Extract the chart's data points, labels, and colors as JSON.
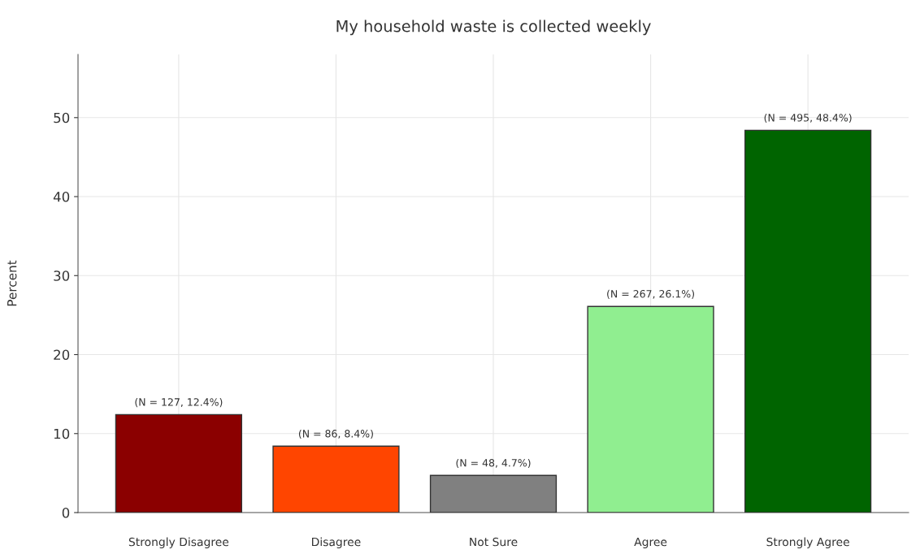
{
  "chart_data": {
    "type": "bar",
    "title": "My household waste is collected weekly",
    "ylabel": "Percent",
    "categories": [
      "Strongly Disagree",
      "Disagree",
      "Not Sure",
      "Agree",
      "Strongly Agree"
    ],
    "values": [
      12.4,
      8.4,
      4.7,
      26.1,
      48.4
    ],
    "colors": [
      "#8b0000",
      "#ff4500",
      "#808080",
      "#90ee90",
      "#006400"
    ],
    "value_labels": [
      "(N = 127, 12.4%)",
      "(N = 86, 8.4%)",
      "(N = 48, 4.7%)",
      "(N = 267, 26.1%)",
      "(N = 495, 48.4%)"
    ],
    "ylim": [
      0,
      58
    ],
    "yticks": [
      0,
      10,
      20,
      30,
      40,
      50
    ],
    "grid": true,
    "legend": false
  }
}
